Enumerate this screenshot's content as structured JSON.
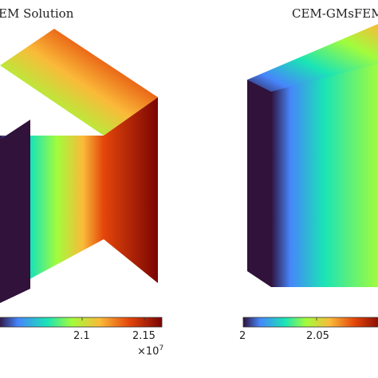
{
  "chart_data": [
    {
      "type": "heatmap",
      "title": "EM Solution",
      "colormap": "turbo",
      "colorbar": {
        "ticks": [
          2.1,
          2.15
        ],
        "tick_labels": [
          "2.1",
          "2.15"
        ],
        "multiplier_base": "×10",
        "multiplier_exp": "7",
        "range": [
          2.0,
          2.16
        ]
      }
    },
    {
      "type": "heatmap",
      "title": "CEM-GMsFEM",
      "colormap": "turbo",
      "colorbar": {
        "ticks": [
          2,
          2.05
        ],
        "tick_labels": [
          "2",
          "2.05"
        ],
        "range": [
          2.0,
          2.16
        ]
      }
    }
  ],
  "colors": {
    "low": "#30123b",
    "mid_low": "#4686fb",
    "mid": "#1ae4b6",
    "mid_high": "#a2fc3c",
    "high": "#faba39",
    "max": "#7a0403"
  }
}
